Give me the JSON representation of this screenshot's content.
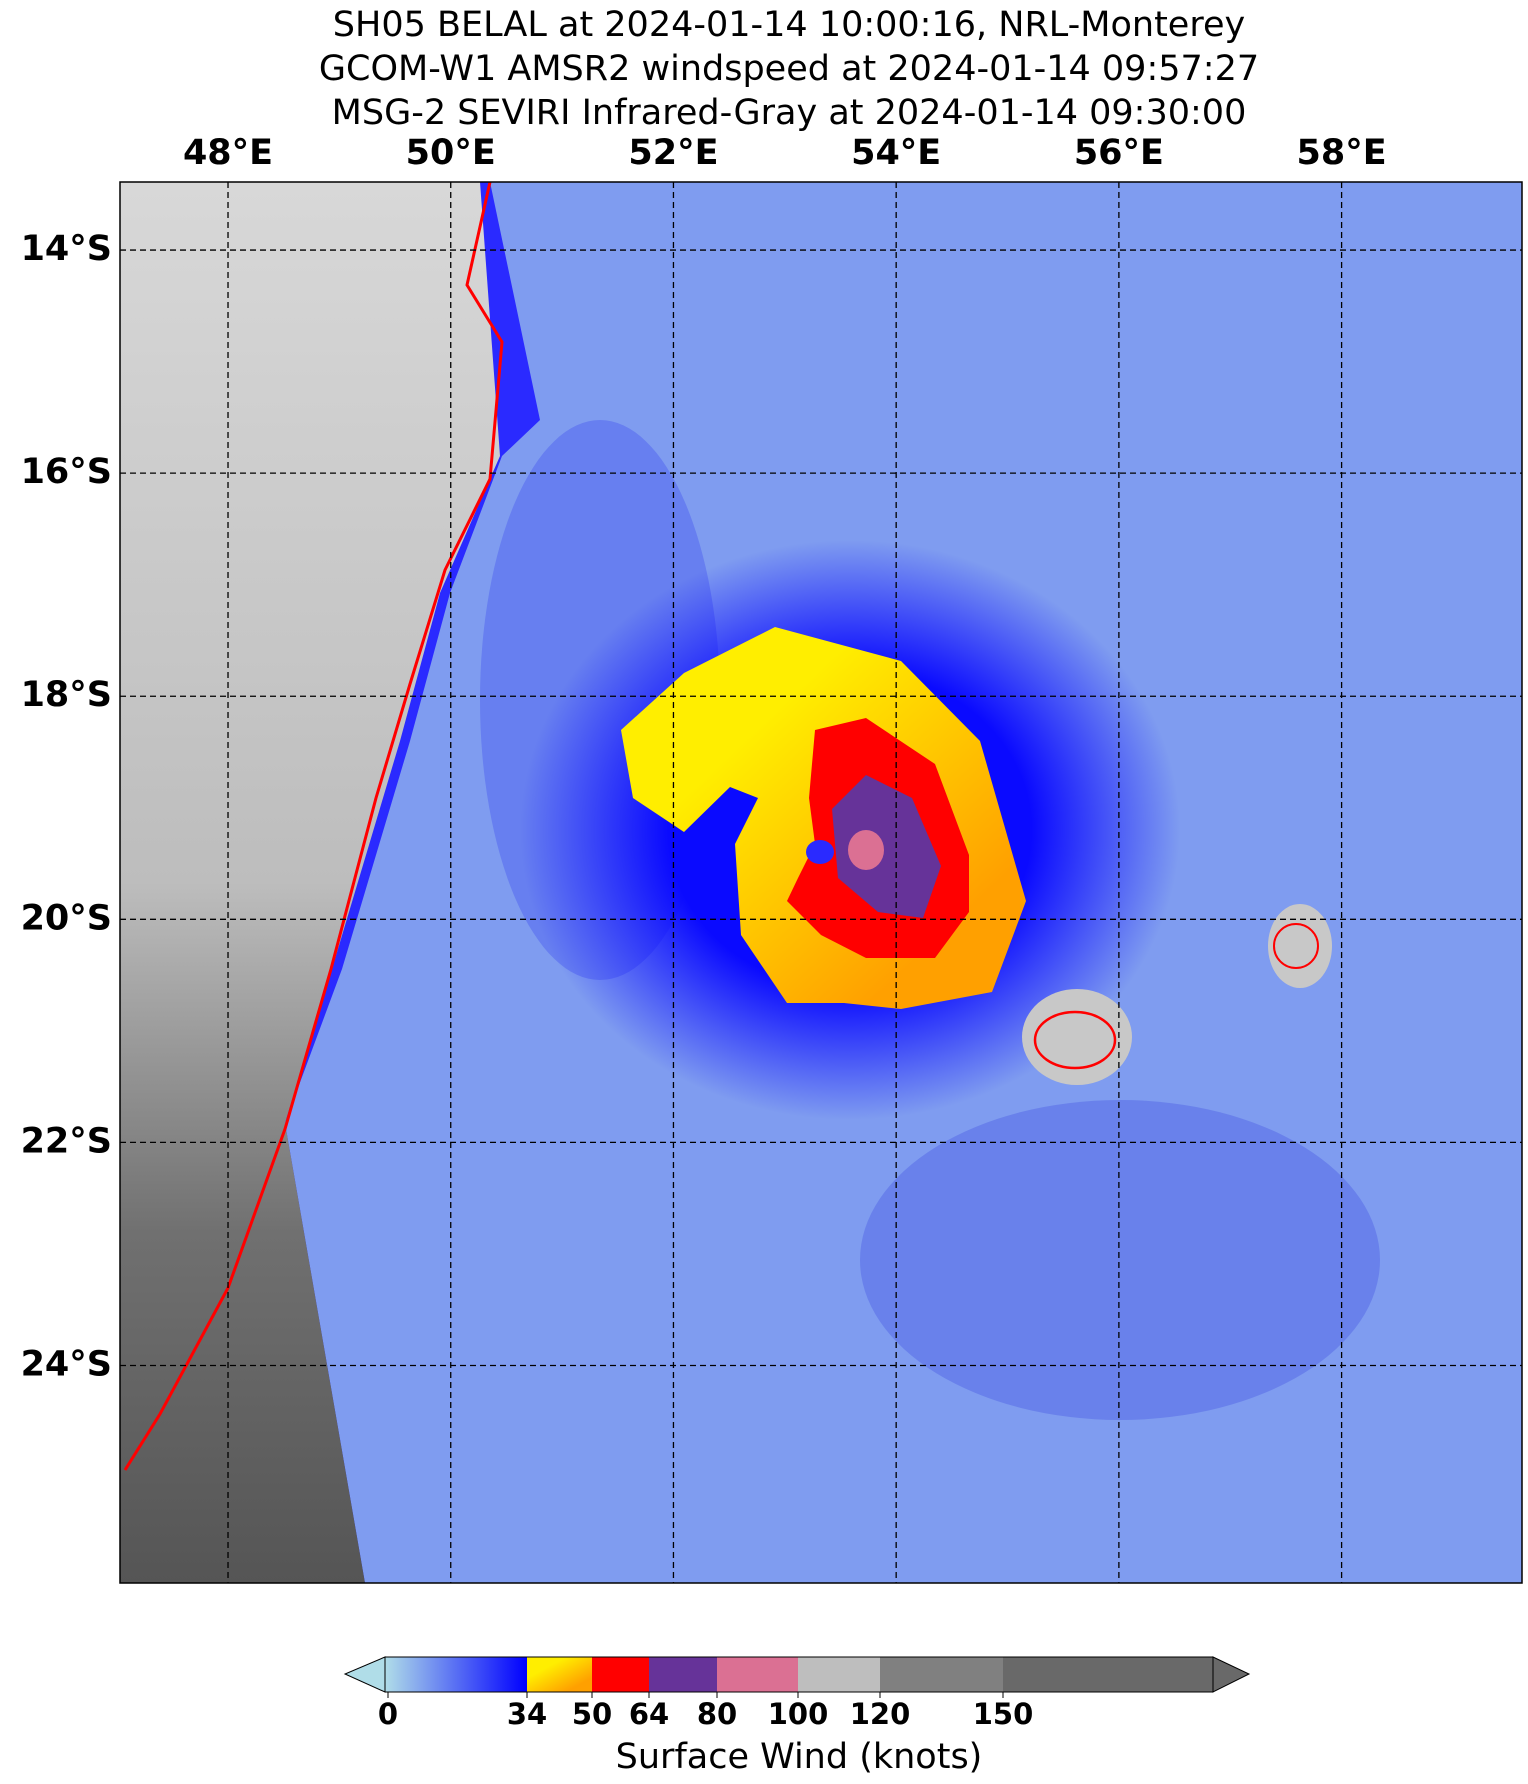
{
  "map": {
    "title": [
      "SH05 BELAL at 2024-01-14 10:00:16, NRL-Monterey",
      "GCOM-W1 AMSR2 windspeed at 2024-01-14 09:57:27",
      "MSG-2 SEVIRI Infrared-Gray at 2024-01-14 09:30:00"
    ],
    "xlim": [
      47.03,
      59.62
    ],
    "ylim": [
      -25.95,
      -13.39
    ],
    "xticks": [
      {
        "value": 48,
        "label": "48°E"
      },
      {
        "value": 50,
        "label": "50°E"
      },
      {
        "value": 52,
        "label": "52°E"
      },
      {
        "value": 54,
        "label": "54°E"
      },
      {
        "value": 56,
        "label": "56°E"
      },
      {
        "value": 58,
        "label": "58°E"
      }
    ],
    "yticks": [
      {
        "value": -14,
        "label": "14°S"
      },
      {
        "value": -16,
        "label": "16°S"
      },
      {
        "value": -18,
        "label": "18°S"
      },
      {
        "value": -20,
        "label": "20°S"
      },
      {
        "value": -22,
        "label": "22°S"
      },
      {
        "value": -24,
        "label": "24°S"
      }
    ],
    "grid": true,
    "colorbar": {
      "ticks": [
        0,
        34,
        50,
        64,
        80,
        100,
        120,
        150
      ],
      "label": "Surface Wind (knots)"
    }
  }
}
